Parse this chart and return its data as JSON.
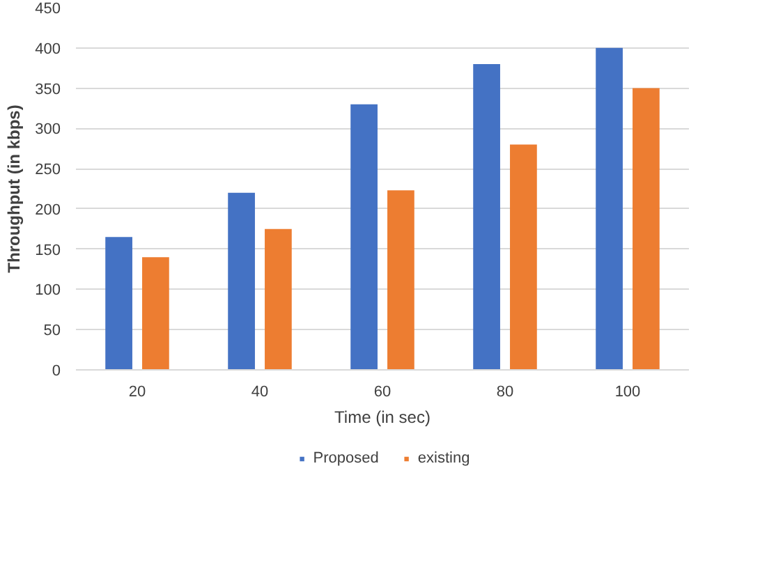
{
  "chart_data": {
    "type": "bar",
    "xlabel": "Time (in sec)",
    "ylabel": "Throughput (in kbps)",
    "categories": [
      "20",
      "40",
      "60",
      "80",
      "100"
    ],
    "series": [
      {
        "name": "Proposed",
        "color": "#4472c4",
        "values": [
          165,
          220,
          330,
          380,
          400
        ]
      },
      {
        "name": "existing",
        "color": "#ed7d31",
        "values": [
          140,
          175,
          223,
          280,
          350
        ]
      }
    ],
    "ylim": [
      0,
      450
    ],
    "yticks": [
      0,
      50,
      100,
      150,
      200,
      250,
      300,
      350,
      400,
      450
    ],
    "grid": "y",
    "legend": "bottom"
  }
}
